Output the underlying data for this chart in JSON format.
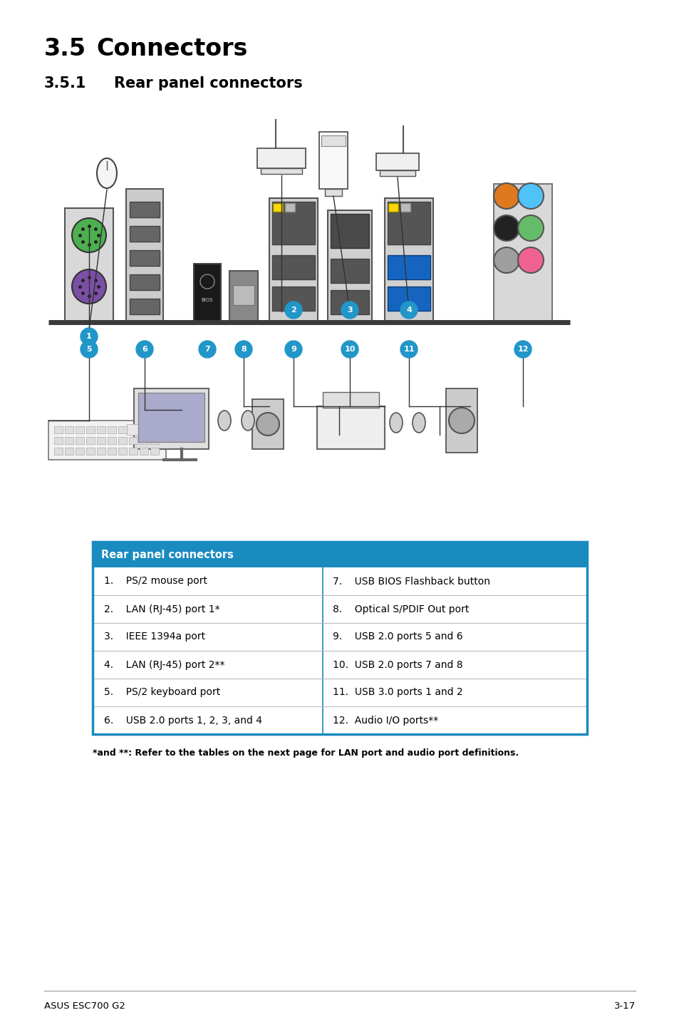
{
  "title_section": "3.5",
  "title_text": "Connectors",
  "subtitle_section": "3.5.1",
  "subtitle_text": "Rear panel connectors",
  "table_header": "Rear panel connectors",
  "table_header_bg": "#1a8bbf",
  "table_header_fg": "#FFFFFF",
  "table_border_color": "#1a8bbf",
  "table_row_divider": "#BBBBBB",
  "table_rows_left": [
    "1.    PS/2 mouse port",
    "2.    LAN (RJ-45) port 1*",
    "3.    IEEE 1394a port",
    "4.    LAN (RJ-45) port 2**",
    "5.    PS/2 keyboard port",
    "6.    USB 2.0 ports 1, 2, 3, and 4"
  ],
  "table_rows_right": [
    "7.    USB BIOS Flashback button",
    "8.    Optical S/PDIF Out port",
    "9.    USB 2.0 ports 5 and 6",
    "10.  USB 2.0 ports 7 and 8",
    "11.  USB 3.0 ports 1 and 2",
    "12.  Audio I/O ports**"
  ],
  "footnote": "*and **: Refer to the tables on the next page for LAN port and audio port definitions.",
  "footer_left": "ASUS ESC700 G2",
  "footer_right": "3-17",
  "page_bg": "#FFFFFF",
  "text_color": "#000000",
  "bubble_color": "#2196c8",
  "bubble_text_color": "#FFFFFF",
  "panel_bg": "#E8E8E8",
  "panel_border": "#555555",
  "baseline_color": "#3a3a3a",
  "port_dark": "#444444",
  "port_mid": "#888888",
  "port_light": "#CCCCCC"
}
